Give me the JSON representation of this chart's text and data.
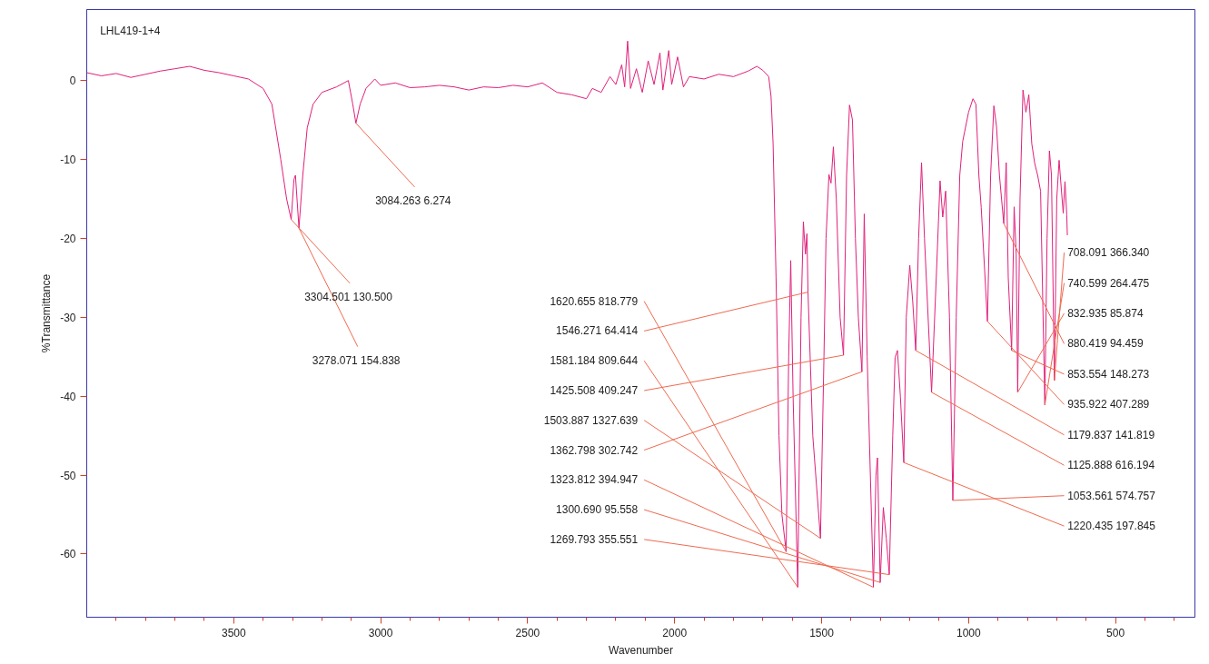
{
  "chart_data": {
    "type": "line",
    "title": "LHL419-1+4",
    "xlabel": "Wavenumber",
    "ylabel": "%Transmittance",
    "xlim": [
      4000,
      230
    ],
    "ylim": [
      -68,
      9
    ],
    "xticks": [
      3500,
      3000,
      2500,
      2000,
      1500,
      1000,
      500
    ],
    "yticks": [
      0,
      -10,
      -20,
      -30,
      -40,
      -50,
      -60
    ],
    "grid": false,
    "series": [
      {
        "color": "#e0207a",
        "x": [
          4000,
          3950,
          3900,
          3850,
          3800,
          3750,
          3700,
          3650,
          3600,
          3550,
          3500,
          3450,
          3400,
          3370,
          3340,
          3320,
          3304.501,
          3295,
          3290,
          3278.071,
          3265,
          3250,
          3230,
          3200,
          3150,
          3110,
          3095,
          3084.263,
          3070,
          3050,
          3020,
          3000,
          2950,
          2900,
          2850,
          2800,
          2750,
          2700,
          2650,
          2600,
          2550,
          2500,
          2450,
          2400,
          2350,
          2300,
          2280,
          2250,
          2220,
          2200,
          2180,
          2170,
          2160,
          2150,
          2130,
          2110,
          2090,
          2070,
          2050,
          2040,
          2020,
          2010,
          1990,
          1970,
          1950,
          1900,
          1850,
          1800,
          1750,
          1720,
          1700,
          1680,
          1672,
          1665,
          1655,
          1645,
          1635,
          1620.655,
          1612,
          1605,
          1597,
          1581.184,
          1570,
          1562,
          1555,
          1550,
          1546.271,
          1530,
          1503.887,
          1492,
          1485,
          1475,
          1468,
          1460,
          1450,
          1437,
          1425.508,
          1415,
          1405,
          1395,
          1385,
          1375,
          1362.798,
          1355,
          1345,
          1323.812,
          1315,
          1310,
          1300.69,
          1290,
          1280,
          1269.793,
          1258,
          1250,
          1242,
          1232,
          1220.435,
          1212,
          1200,
          1190,
          1179.837,
          1170,
          1160,
          1150,
          1125.888,
          1110,
          1097,
          1088,
          1078,
          1065,
          1053.561,
          1042,
          1030,
          1020,
          1000,
          985,
          975,
          965,
          957,
          935.922,
          925,
          914,
          905,
          895,
          880.419,
          872,
          865,
          853.554,
          845,
          838,
          832.935,
          825,
          815,
          805,
          795,
          785,
          775,
          765,
          755,
          740.599,
          733,
          725,
          718,
          708.091,
          700,
          692,
          685,
          678,
          672,
          666,
          664
        ],
        "values": [
          1.0,
          0.6,
          0.9,
          0.4,
          0.8,
          1.2,
          1.5,
          1.8,
          1.3,
          1.0,
          0.6,
          0.2,
          -1.0,
          -3,
          -10,
          -15,
          -17.6,
          -12.5,
          -12,
          -18.7,
          -12,
          -6,
          -3,
          -1.5,
          -0.8,
          0.0,
          -3,
          -5.4,
          -3,
          -1,
          0.2,
          -0.6,
          -0.3,
          -0.9,
          -0.8,
          -0.6,
          -0.8,
          -1.2,
          -0.8,
          -0.9,
          -0.6,
          -0.8,
          -0.3,
          -1.5,
          -1.8,
          -2.3,
          -1.0,
          -1.5,
          0.5,
          -0.5,
          2.0,
          -0.8,
          5.0,
          -1.0,
          1.5,
          -1.5,
          2.5,
          -0.5,
          3.5,
          -1.2,
          3.8,
          -0.5,
          3.0,
          -0.8,
          0.5,
          0.2,
          0.8,
          0.5,
          1.2,
          1.8,
          1.3,
          0.5,
          -2,
          -8,
          -25,
          -45,
          -55,
          -59.7,
          -35,
          -22.8,
          -40,
          -64.2,
          -30,
          -17.9,
          -22,
          -19.4,
          -26.8,
          -45,
          -58,
          -35,
          -20,
          -11.9,
          -13,
          -8.4,
          -15,
          -30,
          -34.8,
          -12,
          -3.1,
          -5,
          -20,
          -30,
          -36.9,
          -16.9,
          -35,
          -64.2,
          -50,
          -47.8,
          -63.6,
          -54.1,
          -58,
          -62.6,
          -45,
          -35.1,
          -34.2,
          -40,
          -48.4,
          -30,
          -23.4,
          -28,
          -34.2,
          -20,
          -10.4,
          -20,
          -39.5,
          -25,
          -12.7,
          -17.3,
          -14,
          -30,
          -53.2,
          -30,
          -12,
          -7.7,
          -4,
          -2.3,
          -3,
          -12,
          -16.1,
          -30.5,
          -12,
          -3.2,
          -5.8,
          -12,
          -18.1,
          -10.4,
          -25,
          -34.2,
          -16,
          -22,
          -39.5,
          -15,
          -1.2,
          -4,
          -1.8,
          -8,
          -10.5,
          -12,
          -14,
          -41.1,
          -20,
          -8.9,
          -12,
          -38,
          -15,
          -10.1,
          -13.5,
          -16.8,
          -12.8,
          -17,
          -19.6
        ]
      }
    ],
    "annotations": [
      {
        "text": "3304.501  130.500",
        "x": 3304.501,
        "y": -17.6
      },
      {
        "text": "3278.071  154.838",
        "x": 3278.071,
        "y": -18.7
      },
      {
        "text": "3084.263  6.274",
        "x": 3084.263,
        "y": -5.4
      },
      {
        "text": "1620.655  818.779",
        "x": 1620.655,
        "y": -59.7
      },
      {
        "text": "1546.271  64.414",
        "x": 1546.271,
        "y": -26.8
      },
      {
        "text": "1581.184  809.644",
        "x": 1581.184,
        "y": -64.2
      },
      {
        "text": "1425.508  409.247",
        "x": 1425.508,
        "y": -34.8
      },
      {
        "text": "1503.887  1327.639",
        "x": 1503.887,
        "y": -58
      },
      {
        "text": "1362.798  302.742",
        "x": 1362.798,
        "y": -36.9
      },
      {
        "text": "1323.812  394.947",
        "x": 1323.812,
        "y": -64.2
      },
      {
        "text": "1300.690  95.558",
        "x": 1300.69,
        "y": -63.6
      },
      {
        "text": "1269.793  355.551",
        "x": 1269.793,
        "y": -62.6
      },
      {
        "text": "708.091  366.340",
        "x": 708.091,
        "y": -38
      },
      {
        "text": "740.599  264.475",
        "x": 740.599,
        "y": -41.1
      },
      {
        "text": "832.935  85.874",
        "x": 832.935,
        "y": -39.5
      },
      {
        "text": "880.419  94.459",
        "x": 880.419,
        "y": -18.1
      },
      {
        "text": "853.554  148.273",
        "x": 853.554,
        "y": -34.2
      },
      {
        "text": "935.922  407.289",
        "x": 935.922,
        "y": -30.5
      },
      {
        "text": "1179.837  141.819",
        "x": 1179.837,
        "y": -34.2
      },
      {
        "text": "1125.888  616.194",
        "x": 1125.888,
        "y": -39.5
      },
      {
        "text": "1053.561  574.757",
        "x": 1053.561,
        "y": -53.2
      },
      {
        "text": "1220.435  197.845",
        "x": 1220.435,
        "y": -48.4
      }
    ]
  }
}
